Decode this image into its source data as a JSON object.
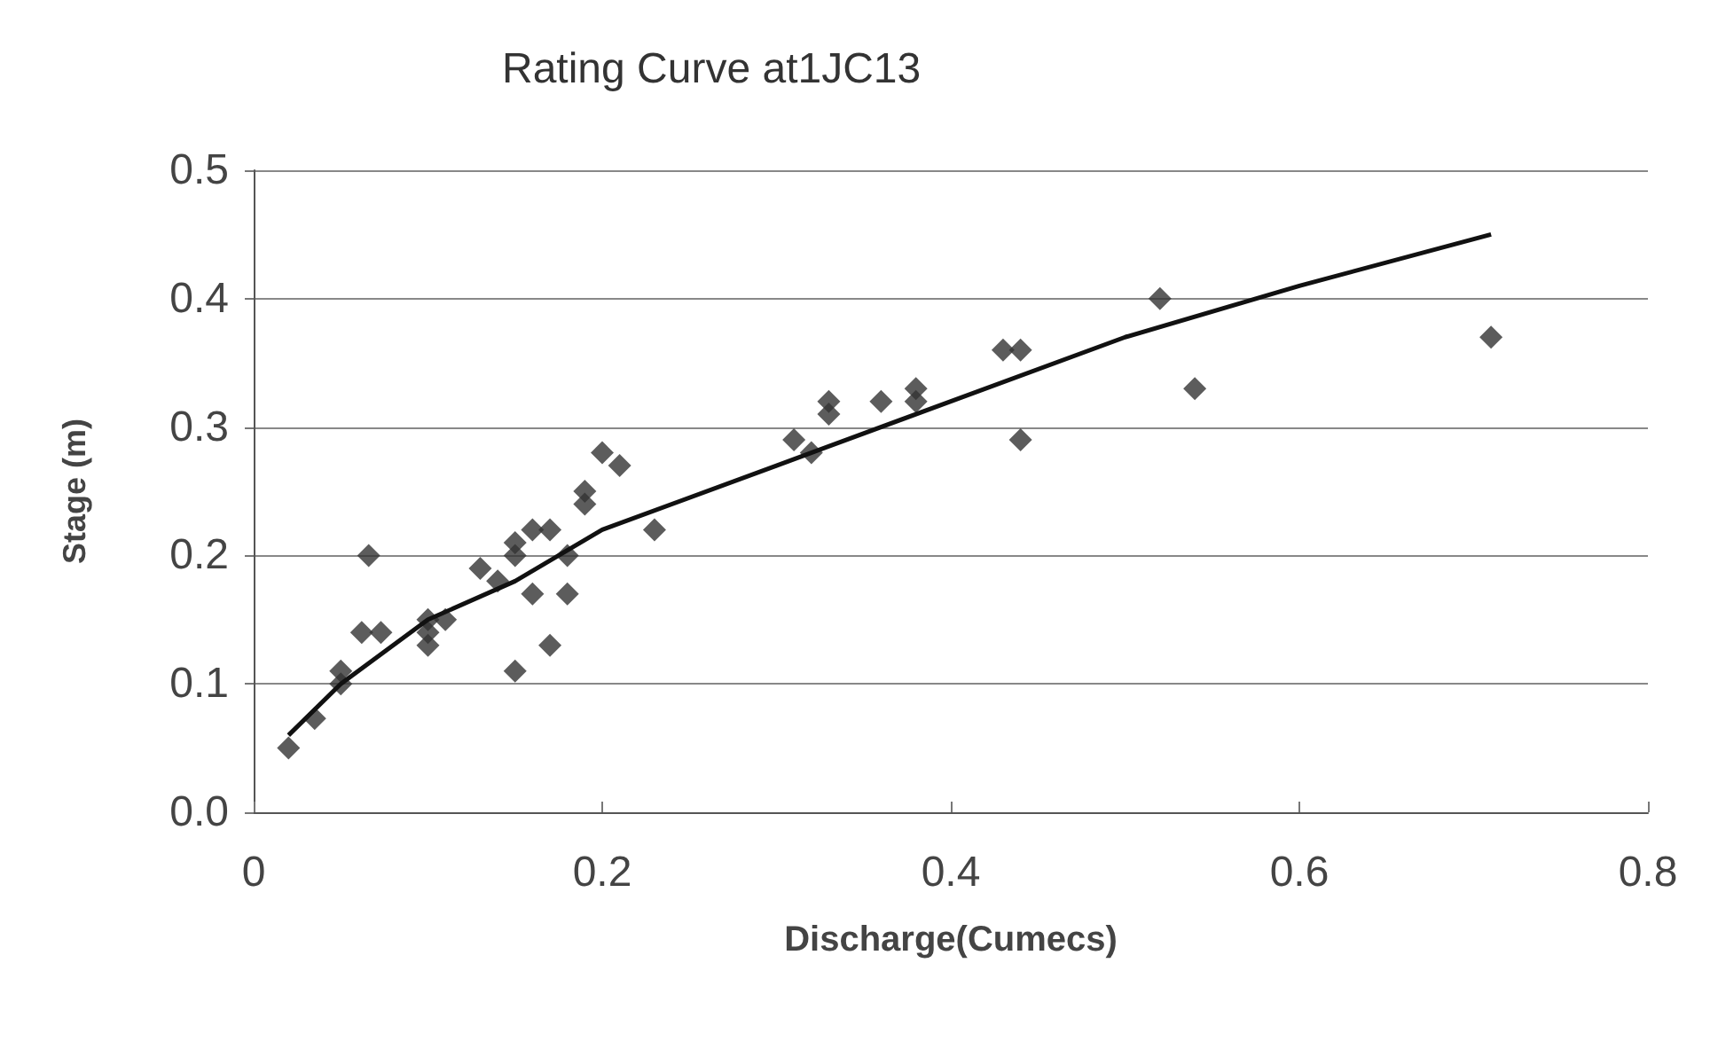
{
  "chart_data": {
    "type": "scatter",
    "title": "Rating Curve at1JC13",
    "xlabel": "Discharge(Cumecs)",
    "ylabel": "Stage (m)",
    "xlim": [
      0,
      0.8
    ],
    "xticks": [
      0,
      0.2,
      0.4,
      0.6,
      0.8
    ],
    "ylim": [
      0,
      0.5
    ],
    "yticks": [
      {
        "value": 0,
        "label": "0.0"
      },
      0.1,
      0.2,
      0.3,
      0.4,
      0.5
    ],
    "grid": "y",
    "series": [
      {
        "marker": "diamond",
        "color": "#333333",
        "x": [
          0.02,
          0.035,
          0.05,
          0.05,
          0.062,
          0.066,
          0.073,
          0.1,
          0.1,
          0.1,
          0.11,
          0.13,
          0.14,
          0.15,
          0.15,
          0.16,
          0.17,
          0.15,
          0.16,
          0.17,
          0.18,
          0.18,
          0.2,
          0.21,
          0.19,
          0.19,
          0.23,
          0.31,
          0.32,
          0.33,
          0.33,
          0.36,
          0.38,
          0.38,
          0.44,
          0.43,
          0.44,
          0.52,
          0.54,
          0.71
        ],
        "values": [
          0.05,
          0.073,
          0.1,
          0.11,
          0.14,
          0.2,
          0.14,
          0.14,
          0.15,
          0.13,
          0.15,
          0.19,
          0.18,
          0.2,
          0.21,
          0.22,
          0.22,
          0.11,
          0.17,
          0.13,
          0.2,
          0.17,
          0.28,
          0.27,
          0.25,
          0.24,
          0.22,
          0.29,
          0.28,
          0.32,
          0.31,
          0.32,
          0.33,
          0.32,
          0.29,
          0.36,
          0.36,
          0.4,
          0.33,
          0.37
        ]
      },
      {
        "type": "line",
        "marker": "none",
        "line_style": "solid",
        "color": "#111111",
        "x": [
          0.02,
          0.05,
          0.1,
          0.15,
          0.2,
          0.3,
          0.4,
          0.5,
          0.6,
          0.71
        ],
        "values": [
          0.06,
          0.1,
          0.15,
          0.18,
          0.22,
          0.27,
          0.32,
          0.37,
          0.41,
          0.45
        ]
      }
    ]
  }
}
